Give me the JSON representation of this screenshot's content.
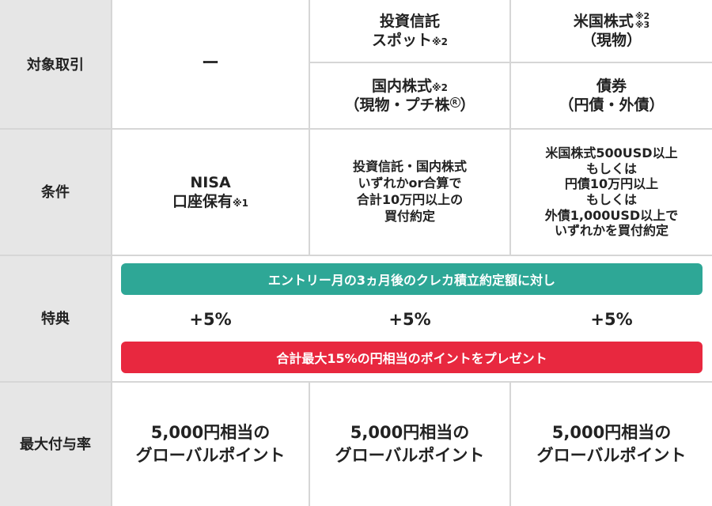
{
  "colors": {
    "header_bg": "#e6e6e6",
    "grid_line": "#d6d6d6",
    "banner_top": "#2ea796",
    "banner_bottom": "#e8283f"
  },
  "rows": {
    "target": "対象取引",
    "condition": "条件",
    "benefit": "特典",
    "max_rate": "最大付与率"
  },
  "target": {
    "col1": "ー",
    "col2_top_line1": "投資信託",
    "col2_top_line2": "スポット",
    "col2_top_note": "※2",
    "col3_top_line1": "米国株式",
    "col3_top_note1": "※2",
    "col3_top_note2": "※3",
    "col3_top_line2": "（現物）",
    "col2_bottom_line1": "国内株式",
    "col2_bottom_note": "※2",
    "col2_bottom_line2a": "（現物・プチ株",
    "col2_bottom_mark": "R",
    "col2_bottom_line2b": "）",
    "col3_bottom_line1": "債券",
    "col3_bottom_line2": "（円債・外債）"
  },
  "condition": {
    "col1_line1": "NISA",
    "col1_line2": "口座保有",
    "col1_note": "※1",
    "col2_lines": [
      "投資信託・国内株式",
      "いずれかor合算で",
      "合計10万円以上の",
      "買付約定"
    ],
    "col3_lines": [
      "米国株式500USD以上",
      "もしくは",
      "円債10万円以上",
      "もしくは",
      "外債1,000USD以上で",
      "いずれかを買付約定"
    ]
  },
  "benefit": {
    "banner_top": "エントリー月の3ヵ月後のクレカ積立約定額に対し",
    "pct1": "+5%",
    "pct2": "+5%",
    "pct3": "+5%",
    "banner_bottom": "合計最大15%の円相当のポイントをプレゼント"
  },
  "max_rate": {
    "col1_line1": "5,000円相当の",
    "col1_line2": "グローバルポイント",
    "col2_line1": "5,000円相当の",
    "col2_line2": "グローバルポイント",
    "col3_line1": "5,000円相当の",
    "col3_line2": "グローバルポイント"
  }
}
